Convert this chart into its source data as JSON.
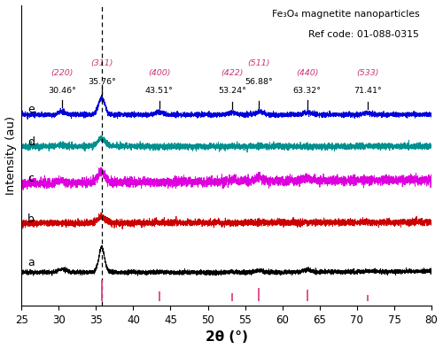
{
  "title_line1": "Fe₃O₄ magnetite nanoparticles",
  "title_line2": "Ref code: 01-088-0315",
  "xlabel": "2θ (°)",
  "ylabel": "Intensity (au)",
  "xlim": [
    25,
    80
  ],
  "x_ticks": [
    25,
    30,
    35,
    40,
    45,
    50,
    55,
    60,
    65,
    70,
    75,
    80
  ],
  "dashed_line_x": 35.76,
  "colors": {
    "a": "#000000",
    "b": "#cc0000",
    "c": "#dd00dd",
    "d": "#009090",
    "e": "#0000dd"
  },
  "label_color_hkl": "#cc3377",
  "noise_seed": 42,
  "peak_annotations": [
    {
      "hkl": "(220)",
      "angle": "30.46°",
      "x": 30.46,
      "tick": true
    },
    {
      "hkl": "(311)",
      "angle": "35.76°",
      "x": 35.76,
      "tick": true
    },
    {
      "hkl": "(400)",
      "angle": "43.51°",
      "x": 43.51,
      "tick": true
    },
    {
      "hkl": "(422)",
      "angle": "53.24°",
      "x": 53.24,
      "tick": true
    },
    {
      "hkl": "(511)",
      "angle": "56.88°",
      "x": 56.88,
      "tick": true
    },
    {
      "hkl": "(440)",
      "angle": "63.32°",
      "x": 63.32,
      "tick": true
    },
    {
      "hkl": "(533)",
      "angle": "71.41°",
      "x": 71.41,
      "tick": true
    }
  ],
  "ref_lines": [
    35.76,
    43.51,
    53.24,
    56.88,
    63.32,
    71.41
  ],
  "ref_line_heights": [
    1.0,
    0.45,
    0.38,
    0.65,
    0.55,
    0.28
  ]
}
